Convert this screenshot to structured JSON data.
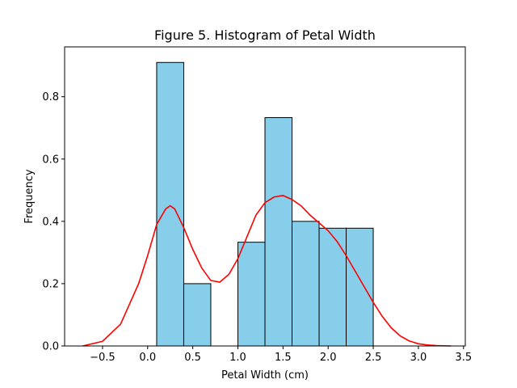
{
  "chart_data": {
    "type": "bar",
    "title": "Figure 5. Histogram of Petal Width",
    "xlabel": "Petal Width (cm)",
    "ylabel": "Frequency",
    "xlim": [
      -0.92,
      3.52
    ],
    "ylim": [
      0,
      0.96
    ],
    "x_ticks": [
      -0.5,
      0.0,
      0.5,
      1.0,
      1.5,
      2.0,
      2.5,
      3.0,
      3.5
    ],
    "x_tick_labels": [
      "−0.5",
      "0.0",
      "0.5",
      "1.0",
      "1.5",
      "2.0",
      "2.5",
      "3.0",
      "3.5"
    ],
    "y_ticks": [
      0.0,
      0.2,
      0.4,
      0.6,
      0.8
    ],
    "y_tick_labels": [
      "0.0",
      "0.2",
      "0.4",
      "0.6",
      "0.8"
    ],
    "grid": false,
    "bar_color": "#87CEEB",
    "bar_edge_color": "#000000",
    "bins": [
      {
        "x0": 0.1,
        "x1": 0.4,
        "value": 0.91
      },
      {
        "x0": 0.4,
        "x1": 0.7,
        "value": 0.2
      },
      {
        "x0": 0.7,
        "x1": 1.0,
        "value": 0.0
      },
      {
        "x0": 1.0,
        "x1": 1.3,
        "value": 0.333
      },
      {
        "x0": 1.3,
        "x1": 1.6,
        "value": 0.733
      },
      {
        "x0": 1.6,
        "x1": 1.9,
        "value": 0.4
      },
      {
        "x0": 1.9,
        "x1": 2.2,
        "value": 0.378
      },
      {
        "x0": 2.2,
        "x1": 2.5,
        "value": 0.378
      }
    ],
    "density_curve": {
      "color": "#FF0000",
      "x": [
        -0.72,
        -0.5,
        -0.3,
        -0.1,
        0.0,
        0.1,
        0.2,
        0.25,
        0.3,
        0.4,
        0.5,
        0.6,
        0.7,
        0.8,
        0.9,
        1.0,
        1.1,
        1.2,
        1.3,
        1.4,
        1.5,
        1.6,
        1.7,
        1.8,
        1.9,
        2.0,
        2.1,
        2.2,
        2.3,
        2.4,
        2.5,
        2.6,
        2.7,
        2.8,
        2.9,
        3.0,
        3.1,
        3.2,
        3.36
      ],
      "y": [
        0.0,
        0.015,
        0.07,
        0.2,
        0.29,
        0.39,
        0.44,
        0.45,
        0.44,
        0.38,
        0.31,
        0.25,
        0.21,
        0.205,
        0.23,
        0.28,
        0.35,
        0.42,
        0.46,
        0.478,
        0.483,
        0.47,
        0.45,
        0.42,
        0.395,
        0.37,
        0.335,
        0.29,
        0.24,
        0.19,
        0.14,
        0.095,
        0.058,
        0.032,
        0.016,
        0.007,
        0.003,
        0.001,
        0.0
      ]
    }
  }
}
